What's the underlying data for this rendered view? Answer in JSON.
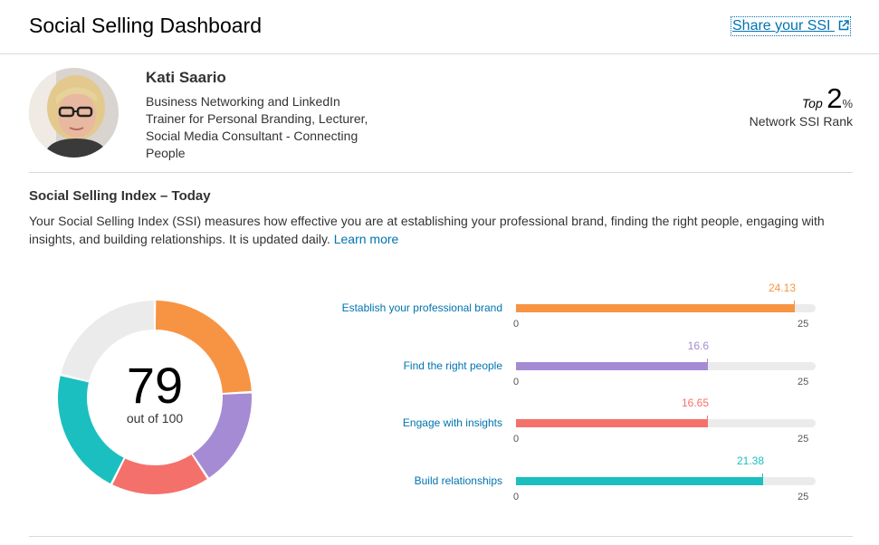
{
  "header": {
    "title": "Social Selling Dashboard",
    "share_label": "Share your SSI",
    "share_icon": "external-link-icon"
  },
  "profile": {
    "name": "Kati Saario",
    "headline": "Business Networking and LinkedIn Trainer for Personal Branding, Lecturer, Social Media Consultant - Connecting People",
    "rank_prefix": "Top",
    "rank_value": "2",
    "rank_unit": "%",
    "rank_label": "Network SSI Rank"
  },
  "ssi": {
    "title": "Social Selling Index – Today",
    "description": "Your Social Selling Index (SSI) measures how effective you are at establishing your professional brand, finding the right people, engaging with insights, and building relationships. It is updated daily.",
    "learn_more": "Learn more",
    "score": "79",
    "score_sub": "out of 100"
  },
  "colors": {
    "brand": "#f79443",
    "people": "#a58bd4",
    "insights": "#f4716b",
    "relationships": "#1bbfbf",
    "remaining": "#ebebeb",
    "link": "#0073b1"
  },
  "chart_data": {
    "type": "bar",
    "categories": [
      "Establish your professional brand",
      "Find the right people",
      "Engage with insights",
      "Build relationships"
    ],
    "values": [
      24.13,
      16.6,
      16.65,
      21.38
    ],
    "value_labels": [
      "24.13",
      "16.6",
      "16.65",
      "21.38"
    ],
    "xlim": [
      0,
      25
    ],
    "axis_min_label": "0",
    "axis_max_label": "25",
    "total": 79,
    "total_max": 100
  }
}
